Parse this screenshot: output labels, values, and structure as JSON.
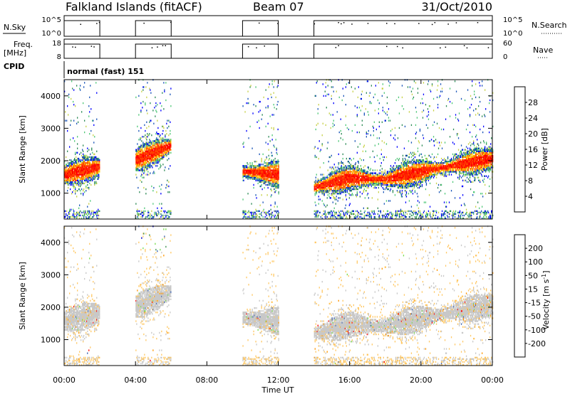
{
  "header": {
    "station": "Falkland Islands (fitACF)",
    "beam": "Beam 07",
    "date": "31/Oct/2010"
  },
  "top_panels": {
    "nsky_label": "N.Sky",
    "nsearch_label": "N.Search",
    "nsky_ticks": [
      "10^5",
      "10^0"
    ],
    "nsearch_ticks": [
      "10^5",
      "10^0"
    ],
    "freq_label_line1": "Freq.",
    "freq_label_line2": "[MHz]",
    "freq_ticks": [
      "18",
      "8"
    ],
    "nave_label": "Nave",
    "nave_ticks": [
      "60",
      "0"
    ],
    "cpid_label": "CPID",
    "cpid_text": "normal (fast) 151"
  },
  "colors": {
    "power": [
      "#0000ff",
      "#1a55b8",
      "#2e8b57",
      "#50c878",
      "#c8d24a",
      "#ffc800",
      "#ff8c00",
      "#ff4500",
      "#ff0000"
    ],
    "velocity": [
      "#ff0000",
      "#ff5a00",
      "#ff9600",
      "#ffc864",
      "#c8c8c8",
      "#78dc50",
      "#3c9650",
      "#3c64b4",
      "#0000c8"
    ]
  },
  "chart_data": [
    {
      "type": "heatmap",
      "ylabel": "Slant Range [km]",
      "xlabel": "",
      "ylim": [
        200,
        4500
      ],
      "xlim_hours": [
        0,
        24
      ],
      "y_ticks": [
        1000,
        2000,
        3000,
        4000
      ],
      "colorbar_label": "Power [dB]",
      "colorbar_ticks": [
        4,
        8,
        12,
        16,
        20,
        24,
        28
      ],
      "colorbar_range": [
        0,
        32
      ],
      "data_intervals_hours": [
        [
          0,
          2
        ],
        [
          4,
          6
        ],
        [
          10,
          12
        ],
        [
          14,
          24
        ]
      ],
      "band_center_km": [
        {
          "t": 0.0,
          "r": 1550
        },
        {
          "t": 2.0,
          "r": 1800
        },
        {
          "t": 4.0,
          "r": 2000
        },
        {
          "t": 6.0,
          "r": 2450
        },
        {
          "t": 10.0,
          "r": 1650
        },
        {
          "t": 12.0,
          "r": 1550
        },
        {
          "t": 14.0,
          "r": 1150
        },
        {
          "t": 16.0,
          "r": 1450
        },
        {
          "t": 18.0,
          "r": 1400
        },
        {
          "t": 20.0,
          "r": 1650
        },
        {
          "t": 22.0,
          "r": 1850
        },
        {
          "t": 24.0,
          "r": 2050
        }
      ]
    },
    {
      "type": "heatmap",
      "ylabel": "Slant Range [km]",
      "xlabel": "Time UT",
      "ylim": [
        200,
        4500
      ],
      "xlim_hours": [
        0,
        24
      ],
      "y_ticks": [
        1000,
        2000,
        3000,
        4000
      ],
      "x_tick_labels": [
        "00:00",
        "04:00",
        "08:00",
        "12:00",
        "16:00",
        "20:00",
        "00:00"
      ],
      "colorbar_label": "Velocity [m s^-1]",
      "colorbar_ticks": [
        -200,
        -100,
        -50,
        -15,
        15,
        50,
        100,
        200
      ],
      "dominant_velocity_range": [
        -15,
        15
      ]
    }
  ]
}
